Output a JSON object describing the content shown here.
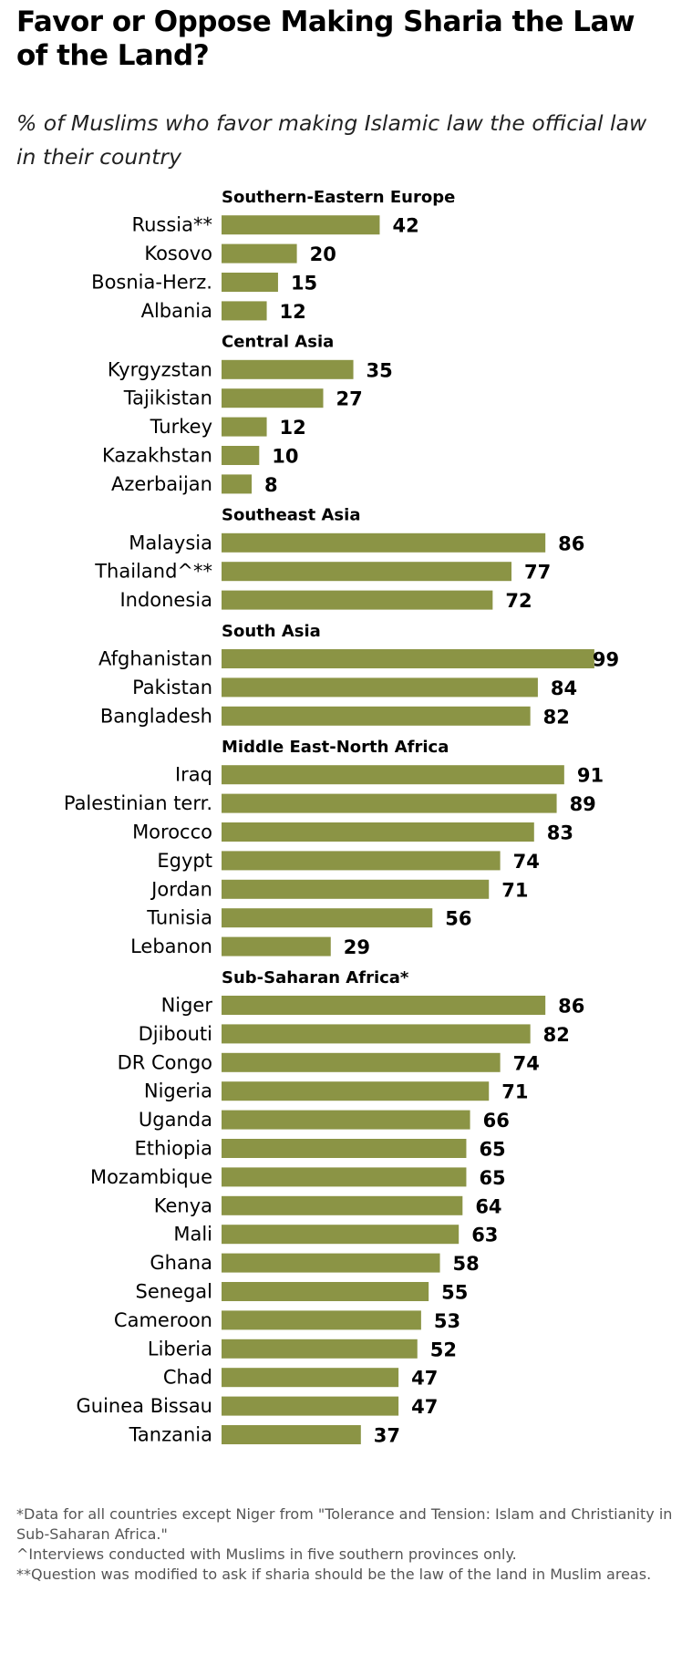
{
  "title": "Favor or Oppose Making Sharia the Law of the Land?",
  "subtitle": "% of Muslims who favor making Islamic law the official law in their country",
  "colors": {
    "bar": "#8b9445",
    "text": "#000000",
    "footnote": "#555555"
  },
  "chart_data": {
    "type": "bar",
    "orientation": "horizontal",
    "xlim": [
      0,
      100
    ],
    "grid": false,
    "legend": "none",
    "groups": [
      {
        "name": "Southern-Eastern  Europe",
        "items": [
          {
            "label": "Russia**",
            "value": 42
          },
          {
            "label": "Kosovo",
            "value": 20
          },
          {
            "label": "Bosnia-Herz.",
            "value": 15
          },
          {
            "label": "Albania",
            "value": 12
          }
        ]
      },
      {
        "name": "Central Asia",
        "items": [
          {
            "label": "Kyrgyzstan",
            "value": 35
          },
          {
            "label": "Tajikistan",
            "value": 27
          },
          {
            "label": "Turkey",
            "value": 12
          },
          {
            "label": "Kazakhstan",
            "value": 10
          },
          {
            "label": "Azerbaijan",
            "value": 8
          }
        ]
      },
      {
        "name": "Southeast  Asia",
        "items": [
          {
            "label": "Malaysia",
            "value": 86
          },
          {
            "label": "Thailand^**",
            "value": 77
          },
          {
            "label": "Indonesia",
            "value": 72
          }
        ]
      },
      {
        "name": "South  Asia",
        "items": [
          {
            "label": "Afghanistan",
            "value": 99
          },
          {
            "label": "Pakistan",
            "value": 84
          },
          {
            "label": "Bangladesh",
            "value": 82
          }
        ]
      },
      {
        "name": "Middle  East-North  Africa",
        "items": [
          {
            "label": "Iraq",
            "value": 91
          },
          {
            "label": "Palestinian terr.",
            "value": 89
          },
          {
            "label": "Morocco",
            "value": 83
          },
          {
            "label": "Egypt",
            "value": 74
          },
          {
            "label": "Jordan",
            "value": 71
          },
          {
            "label": "Tunisia",
            "value": 56
          },
          {
            "label": "Lebanon",
            "value": 29
          }
        ]
      },
      {
        "name": "Sub-Saharan  Africa*",
        "items": [
          {
            "label": "Niger",
            "value": 86
          },
          {
            "label": "Djibouti",
            "value": 82
          },
          {
            "label": "DR Congo",
            "value": 74
          },
          {
            "label": "Nigeria",
            "value": 71
          },
          {
            "label": "Uganda",
            "value": 66
          },
          {
            "label": "Ethiopia",
            "value": 65
          },
          {
            "label": "Mozambique",
            "value": 65
          },
          {
            "label": "Kenya",
            "value": 64
          },
          {
            "label": "Mali",
            "value": 63
          },
          {
            "label": "Ghana",
            "value": 58
          },
          {
            "label": "Senegal",
            "value": 55
          },
          {
            "label": "Cameroon",
            "value": 53
          },
          {
            "label": "Liberia",
            "value": 52
          },
          {
            "label": "Chad",
            "value": 47
          },
          {
            "label": "Guinea Bissau",
            "value": 47
          },
          {
            "label": "Tanzania",
            "value": 37
          }
        ]
      }
    ]
  },
  "footnotes": [
    "*Data for all countries except Niger from \"Tolerance and Tension: Islam and Christianity in Sub-Saharan Africa.\"",
    "^Interviews conducted with Muslims in five  southern provinces only.",
    "**Question was modified to ask if sharia should be the law of the land in Muslim areas."
  ]
}
